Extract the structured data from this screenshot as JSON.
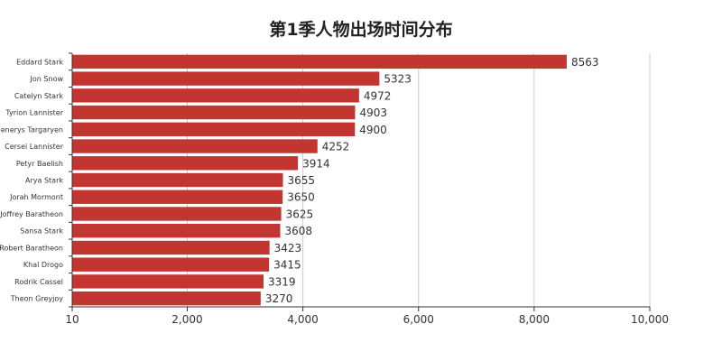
{
  "chart_data": {
    "type": "bar",
    "orientation": "horizontal",
    "title": "第1季人物出场时间分布",
    "categories": [
      "Eddard Stark",
      "Jon Snow",
      "Catelyn Stark",
      "Tyrion Lannister",
      "Daenerys Targaryen",
      "Cersei Lannister",
      "Petyr Baelish",
      "Arya Stark",
      "Jorah Mormont",
      "Joffrey Baratheon",
      "Sansa Stark",
      "Robert Baratheon",
      "Khal Drogo",
      "Rodrik Cassel",
      "Theon Greyjoy"
    ],
    "values": [
      8563,
      5323,
      4972,
      4903,
      4900,
      4252,
      3914,
      3655,
      3650,
      3625,
      3608,
      3423,
      3415,
      3319,
      3270
    ],
    "xlim": [
      10,
      10000
    ],
    "x_ticks": [
      10,
      2000,
      4000,
      6000,
      8000,
      10000
    ],
    "x_tick_labels": [
      "10",
      "2,000",
      "4,000",
      "6,000",
      "8,000",
      "10,000"
    ],
    "xlabel": "",
    "ylabel": "",
    "grid": "vertical",
    "legend": "none",
    "bar_color": "#c23531"
  }
}
